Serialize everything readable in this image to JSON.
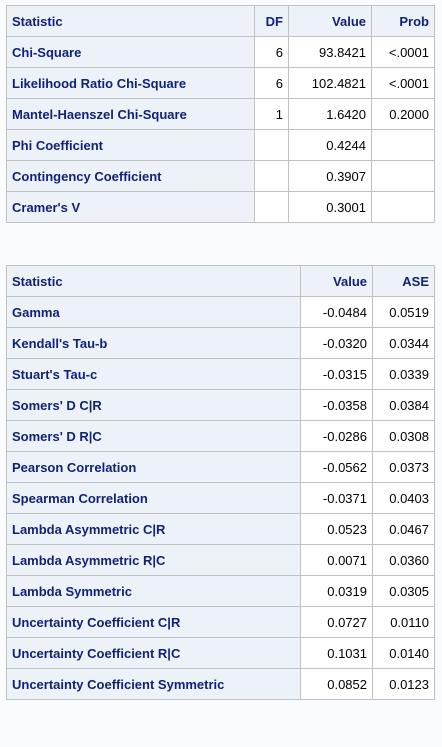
{
  "chi_table": {
    "headers": {
      "statistic": "Statistic",
      "df": "DF",
      "value": "Value",
      "prob": "Prob"
    },
    "rows": [
      {
        "statistic": "Chi-Square",
        "df": "6",
        "value": "93.8421",
        "prob": "<.0001"
      },
      {
        "statistic": "Likelihood Ratio Chi-Square",
        "df": "6",
        "value": "102.4821",
        "prob": "<.0001"
      },
      {
        "statistic": "Mantel-Haenszel Chi-Square",
        "df": "1",
        "value": "1.6420",
        "prob": "0.2000"
      },
      {
        "statistic": "Phi Coefficient",
        "df": "",
        "value": "0.4244",
        "prob": ""
      },
      {
        "statistic": "Contingency Coefficient",
        "df": "",
        "value": "0.3907",
        "prob": ""
      },
      {
        "statistic": "Cramer's V",
        "df": "",
        "value": "0.3001",
        "prob": ""
      }
    ]
  },
  "measures_table": {
    "headers": {
      "statistic": "Statistic",
      "value": "Value",
      "ase": "ASE"
    },
    "rows": [
      {
        "statistic": "Gamma",
        "value": "-0.0484",
        "ase": "0.0519"
      },
      {
        "statistic": "Kendall's Tau-b",
        "value": "-0.0320",
        "ase": "0.0344"
      },
      {
        "statistic": "Stuart's Tau-c",
        "value": "-0.0315",
        "ase": "0.0339"
      },
      {
        "statistic": "Somers' D C|R",
        "value": "-0.0358",
        "ase": "0.0384"
      },
      {
        "statistic": "Somers' D R|C",
        "value": "-0.0286",
        "ase": "0.0308"
      },
      {
        "statistic": "Pearson Correlation",
        "value": "-0.0562",
        "ase": "0.0373"
      },
      {
        "statistic": "Spearman Correlation",
        "value": "-0.0371",
        "ase": "0.0403"
      },
      {
        "statistic": "Lambda Asymmetric C|R",
        "value": "0.0523",
        "ase": "0.0467"
      },
      {
        "statistic": "Lambda Asymmetric R|C",
        "value": "0.0071",
        "ase": "0.0360"
      },
      {
        "statistic": "Lambda Symmetric",
        "value": "0.0319",
        "ase": "0.0305"
      },
      {
        "statistic": "Uncertainty Coefficient C|R",
        "value": "0.0727",
        "ase": "0.0110"
      },
      {
        "statistic": "Uncertainty Coefficient R|C",
        "value": "0.1031",
        "ase": "0.0140"
      },
      {
        "statistic": "Uncertainty Coefficient Symmetric",
        "value": "0.0852",
        "ase": "0.0123"
      }
    ]
  },
  "colors": {
    "header_bg": "#edf2f9",
    "header_text": "#112277",
    "border": "#c1c1c1",
    "page_bg": "#fafbfe"
  }
}
